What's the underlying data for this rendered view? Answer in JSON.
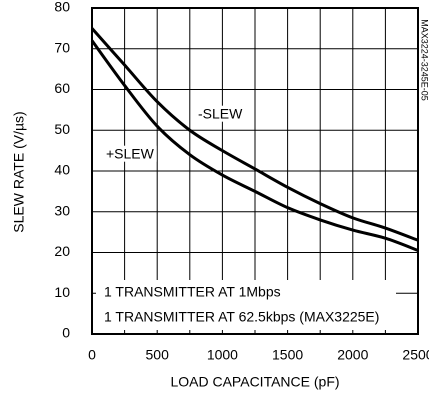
{
  "chart_data": {
    "type": "line",
    "x_label": "LOAD CAPACITANCE (pF)",
    "y_label": "SLEW RATE (V/µs)",
    "x": [
      0,
      250,
      500,
      750,
      1000,
      1250,
      1500,
      1750,
      2000,
      2250,
      2500
    ],
    "series": [
      {
        "name": "-SLEW",
        "color": "#000000",
        "values": [
          75,
          66,
          57,
          50,
          45,
          40.5,
          36,
          32,
          28.5,
          26,
          23
        ]
      },
      {
        "name": "+SLEW",
        "color": "#000000",
        "values": [
          72,
          61,
          51,
          44,
          39,
          35,
          31,
          28,
          25.5,
          23.5,
          20.5
        ]
      }
    ],
    "xlim": [
      0,
      2500
    ],
    "xticks": [
      0,
      500,
      1000,
      1500,
      2000,
      2500
    ],
    "x_minor_ticks": [
      250,
      750,
      1250,
      1750,
      2250
    ],
    "ylim": [
      0,
      80
    ],
    "yticks": [
      0,
      10,
      20,
      30,
      40,
      50,
      60,
      70,
      80
    ],
    "grid": true,
    "annotations": [
      "1 TRANSMITTER AT 1Mbps",
      "1 TRANSMITTER AT 62.5kbps (MAX3225E)"
    ],
    "side_note": "MAX3224-3245E-05"
  }
}
